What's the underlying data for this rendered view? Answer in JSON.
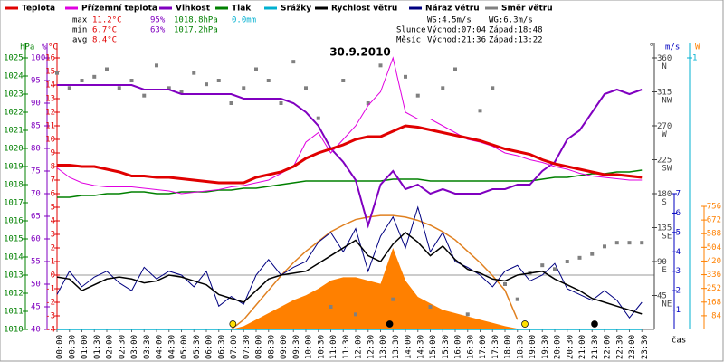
{
  "chart_data": {
    "type": "line",
    "title": "30.9.2010",
    "x_label": "čas",
    "categories": [
      "00:00",
      "00:30",
      "01:00",
      "01:30",
      "02:00",
      "02:30",
      "03:00",
      "03:30",
      "04:00",
      "04:30",
      "05:00",
      "05:30",
      "06:00",
      "06:30",
      "07:00",
      "07:30",
      "08:00",
      "08:30",
      "09:00",
      "09:30",
      "10:00",
      "10:30",
      "11:00",
      "11:30",
      "12:00",
      "12:30",
      "13:00",
      "13:30",
      "14:00",
      "14:30",
      "15:00",
      "15:30",
      "16:00",
      "16:30",
      "17:00",
      "17:30",
      "18:00",
      "18:30",
      "19:00",
      "19:30",
      "20:00",
      "20:30",
      "21:00",
      "21:30",
      "22:00",
      "22:30",
      "23:00",
      "23:30"
    ],
    "ylabel": "°C",
    "ylim": [
      -4,
      16
    ],
    "yticks": [
      -4,
      -3,
      -2,
      -1,
      0,
      1,
      2,
      3,
      4,
      5,
      6,
      7,
      8,
      9,
      10,
      11,
      12,
      13,
      14,
      15,
      16
    ],
    "ycolor": "#e00000",
    "y2label": "%",
    "y2lim": [
      40,
      100
    ],
    "y2ticks": [
      40,
      45,
      50,
      55,
      60,
      65,
      70,
      75,
      80,
      85,
      90,
      95,
      100
    ],
    "y2color": "#8000c0",
    "y3label": "hPa",
    "y3lim": [
      1010,
      1025
    ],
    "y3ticks": [
      1010,
      1011,
      1012,
      1013,
      1014,
      1015,
      1016,
      1017,
      1018,
      1019,
      1020,
      1021,
      1022,
      1023,
      1024,
      1025
    ],
    "y3color": "#008000",
    "y4label": "°",
    "y4lim": [
      0,
      360
    ],
    "y4ticks": [
      {
        "value": 45,
        "label": "45 NE"
      },
      {
        "value": 90,
        "label": "90 E"
      },
      {
        "value": 135,
        "label": "135 SE"
      },
      {
        "value": 180,
        "label": "180 S"
      },
      {
        "value": 225,
        "label": "225 SW"
      },
      {
        "value": 270,
        "label": "270 W"
      },
      {
        "value": 315,
        "label": "315 NW"
      },
      {
        "value": 360,
        "label": "360 N"
      }
    ],
    "y4color": "#404040",
    "y5label": "m/s",
    "y5lim": [
      0,
      7
    ],
    "y5ticks": [
      1,
      2,
      3,
      4,
      5,
      6,
      7
    ],
    "y5color": "#0000c0",
    "y6label": "W",
    "y6lim": [
      0,
      756
    ],
    "y6ticks": [
      84,
      168,
      252,
      336,
      420,
      504,
      588,
      672,
      756
    ],
    "y6color": "#ff8000",
    "y7lim": [
      0,
      1
    ],
    "y7ticks": [
      1
    ],
    "y7color": "#00b0d0",
    "series": [
      {
        "name": "Teplota",
        "color": "#e00000",
        "type": "line",
        "axis": "y",
        "values": [
          8.1,
          8.1,
          8.0,
          8.0,
          7.8,
          7.6,
          7.3,
          7.3,
          7.2,
          7.2,
          7.1,
          7.0,
          6.9,
          6.8,
          6.8,
          6.8,
          7.2,
          7.4,
          7.6,
          8.0,
          8.6,
          9.0,
          9.3,
          9.6,
          10.0,
          10.2,
          10.2,
          10.6,
          11.0,
          10.9,
          10.7,
          10.5,
          10.3,
          10.1,
          9.9,
          9.6,
          9.3,
          9.1,
          8.9,
          8.5,
          8.2,
          8.0,
          7.8,
          7.6,
          7.4,
          7.4,
          7.3,
          7.2
        ]
      },
      {
        "name": "Přízemní teplota",
        "color": "#e000e0",
        "type": "line",
        "axis": "y",
        "values": [
          7.9,
          7.2,
          6.8,
          6.6,
          6.5,
          6.5,
          6.5,
          6.4,
          6.3,
          6.2,
          6.0,
          6.1,
          6.2,
          6.3,
          6.5,
          6.6,
          6.8,
          7.0,
          7.5,
          8.0,
          9.8,
          10.5,
          9.0,
          10.0,
          11.0,
          12.5,
          13.5,
          16.0,
          12.0,
          11.5,
          11.5,
          11.0,
          10.5,
          10.0,
          9.8,
          9.5,
          9.0,
          8.8,
          8.5,
          8.3,
          8.0,
          7.8,
          7.5,
          7.3,
          7.2,
          7.1,
          7.0,
          7.0
        ]
      },
      {
        "name": "Vlhkost",
        "color": "#8000c0",
        "type": "line",
        "axis": "y2",
        "values": [
          94,
          94,
          94,
          94,
          94,
          94,
          94,
          93,
          93,
          93,
          92,
          92,
          92,
          92,
          92,
          91,
          91,
          91,
          91,
          90,
          88,
          85,
          80,
          77,
          73,
          63,
          72,
          75,
          71,
          72,
          70,
          71,
          70,
          70,
          70,
          71,
          71,
          72,
          72,
          75,
          77,
          82,
          84,
          88,
          92,
          93,
          92,
          93
        ]
      },
      {
        "name": "Tlak",
        "color": "#008000",
        "type": "line",
        "axis": "y3",
        "values": [
          1017.3,
          1017.3,
          1017.4,
          1017.4,
          1017.5,
          1017.5,
          1017.6,
          1017.6,
          1017.5,
          1017.5,
          1017.6,
          1017.6,
          1017.6,
          1017.7,
          1017.7,
          1017.8,
          1017.8,
          1017.9,
          1018.0,
          1018.1,
          1018.2,
          1018.2,
          1018.2,
          1018.2,
          1018.2,
          1018.2,
          1018.2,
          1018.3,
          1018.3,
          1018.3,
          1018.2,
          1018.2,
          1018.2,
          1018.2,
          1018.2,
          1018.2,
          1018.2,
          1018.2,
          1018.2,
          1018.3,
          1018.4,
          1018.4,
          1018.5,
          1018.6,
          1018.6,
          1018.7,
          1018.7,
          1018.8
        ]
      },
      {
        "name": "Srážky",
        "color": "#00b0d0",
        "type": "line",
        "axis": "y7",
        "values": [
          0,
          0,
          0,
          0,
          0,
          0,
          0,
          0,
          0,
          0,
          0,
          0,
          0,
          0,
          0,
          0,
          0,
          0,
          0,
          0,
          0,
          0,
          0,
          0,
          0,
          0,
          0,
          0,
          0,
          0,
          0,
          0,
          0,
          0,
          0,
          0,
          0,
          0,
          0,
          0,
          0,
          0,
          0,
          0,
          0,
          0,
          0,
          0
        ]
      },
      {
        "name": "Rychlost větru",
        "color": "#000000",
        "type": "line",
        "axis": "y5",
        "values": [
          2.7,
          2.6,
          2.0,
          2.3,
          2.6,
          2.7,
          2.6,
          2.4,
          2.5,
          2.8,
          2.7,
          2.5,
          2.3,
          1.8,
          1.6,
          1.4,
          2.0,
          2.6,
          2.8,
          2.9,
          3.0,
          3.4,
          3.8,
          4.2,
          4.6,
          3.8,
          3.5,
          4.4,
          5.0,
          4.5,
          3.8,
          4.3,
          3.6,
          3.1,
          2.9,
          2.6,
          2.5,
          2.8,
          2.9,
          3.0,
          2.6,
          2.3,
          2.0,
          1.6,
          1.4,
          1.2,
          1.0,
          0.8
        ]
      },
      {
        "name": "Náraz větru",
        "color": "#000080",
        "type": "line",
        "axis": "y5",
        "values": [
          1.8,
          3.0,
          2.2,
          2.7,
          3.0,
          2.4,
          2.0,
          3.2,
          2.6,
          3.0,
          2.8,
          2.2,
          3.0,
          1.2,
          1.7,
          1.3,
          2.8,
          3.6,
          2.8,
          3.2,
          3.5,
          4.5,
          5.0,
          4.0,
          5.2,
          3.0,
          4.8,
          5.8,
          4.2,
          6.3,
          4.0,
          5.0,
          3.5,
          3.2,
          2.8,
          2.2,
          3.0,
          3.3,
          2.5,
          2.8,
          3.4,
          2.1,
          1.8,
          1.5,
          2.0,
          1.5,
          0.6,
          1.4
        ]
      },
      {
        "name": "Směr větru",
        "color": "#808080",
        "type": "scatter",
        "axis": "y4",
        "values": [
          340,
          320,
          330,
          335,
          345,
          320,
          330,
          310,
          350,
          320,
          315,
          340,
          325,
          330,
          300,
          320,
          345,
          330,
          300,
          355,
          320,
          280,
          30,
          330,
          20,
          300,
          350,
          40,
          335,
          310,
          30,
          320,
          345,
          20,
          290,
          320,
          60,
          40,
          75,
          85,
          80,
          90,
          95,
          100,
          110,
          115,
          115,
          115
        ]
      },
      {
        "color": "#ff8000",
        "type": "area",
        "axis": "y6",
        "values": [
          0,
          0,
          0,
          0,
          0,
          0,
          0,
          0,
          0,
          0,
          0,
          0,
          0,
          0,
          0,
          20,
          60,
          100,
          140,
          180,
          210,
          250,
          300,
          320,
          320,
          300,
          280,
          500,
          300,
          200,
          160,
          120,
          100,
          80,
          60,
          40,
          20,
          5,
          0,
          0,
          0,
          0,
          0,
          0,
          0,
          0,
          0,
          0
        ]
      },
      {
        "color": "#e08020",
        "type": "line",
        "axis": "y6",
        "values": [
          null,
          null,
          null,
          null,
          null,
          null,
          null,
          null,
          null,
          null,
          null,
          null,
          null,
          null,
          0,
          60,
          150,
          240,
          330,
          410,
          480,
          540,
          600,
          640,
          675,
          690,
          700,
          700,
          690,
          670,
          640,
          600,
          550,
          480,
          410,
          330,
          240,
          60,
          null,
          null,
          null,
          null,
          null,
          null,
          null,
          null,
          null,
          null
        ]
      }
    ],
    "stats": {
      "rows": [
        "max",
        "min",
        "avg"
      ],
      "temperature": [
        "11.2°C",
        "6.7°C",
        "8.4°C"
      ],
      "humidity": [
        "95%",
        "63%"
      ],
      "pressure": [
        "1018.8hPa",
        "1017.2hPa"
      ],
      "rain": [
        "0.0mm"
      ],
      "wind": [
        "WS:4.5m/s",
        "WG:6.3m/s"
      ],
      "sun": [
        "Slunce",
        "Východ:07:04",
        "Západ:18:48"
      ],
      "moon": [
        "Měsíc",
        "Východ:21:36",
        "Západ:13:22"
      ]
    }
  }
}
